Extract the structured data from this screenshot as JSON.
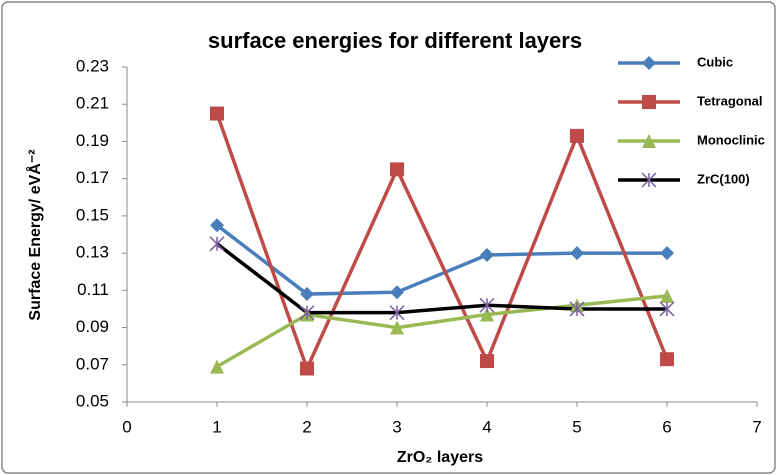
{
  "chart_data": {
    "type": "line",
    "title": "surface energies for different layers",
    "x_label": "ZrO₂ layers",
    "y_label": "Surface Energy/ eVÅ⁻²",
    "x": [
      1,
      2,
      3,
      4,
      5,
      6
    ],
    "series": [
      {
        "name": "Cubic",
        "color": "#4a7ebb",
        "marker": "diamond",
        "values": [
          0.145,
          0.108,
          0.109,
          0.129,
          0.13,
          0.13
        ]
      },
      {
        "name": "Tetragonal",
        "color": "#be4b48",
        "marker": "square",
        "values": [
          0.205,
          0.068,
          0.175,
          0.072,
          0.193,
          0.073
        ]
      },
      {
        "name": "Monoclinic",
        "color": "#98b954",
        "marker": "triangle",
        "values": [
          0.069,
          0.097,
          0.09,
          0.097,
          0.102,
          0.107
        ]
      },
      {
        "name": "ZrC(100)",
        "color": "#000000",
        "marker": "star",
        "values": [
          0.135,
          0.098,
          0.098,
          0.102,
          0.1,
          0.1
        ]
      }
    ],
    "xlim": [
      0,
      7
    ],
    "xticks": [
      0,
      1,
      2,
      3,
      4,
      5,
      6,
      7
    ],
    "ylim": [
      0.05,
      0.23
    ],
    "yticks": [
      0.05,
      0.07,
      0.09,
      0.11,
      0.13,
      0.15,
      0.17,
      0.19,
      0.21,
      0.23
    ],
    "grid": false,
    "legend": "right"
  }
}
